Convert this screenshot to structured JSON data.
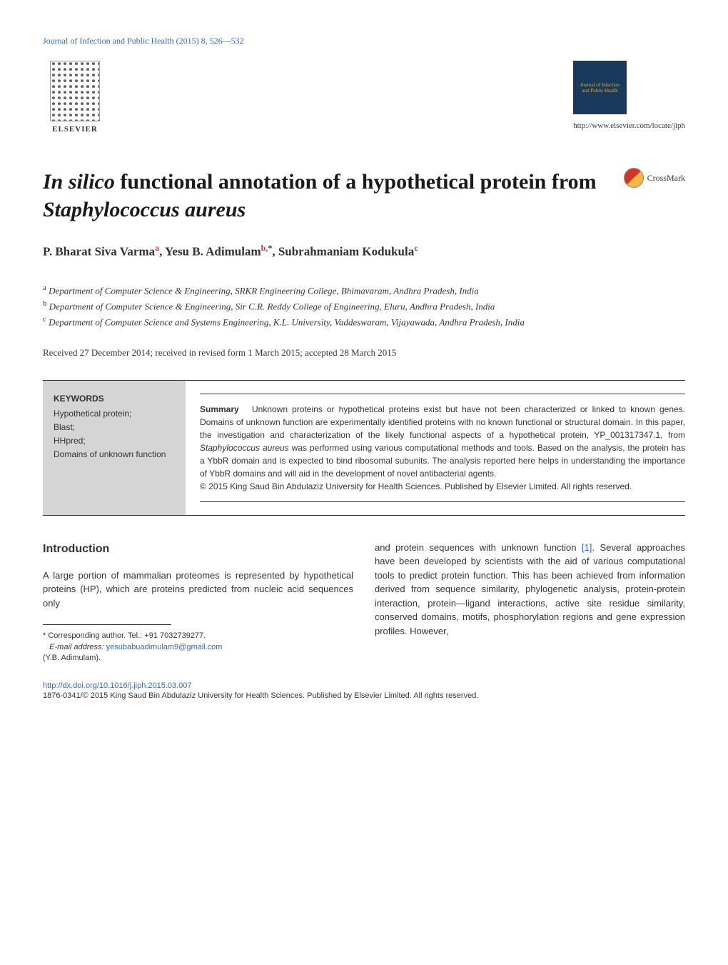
{
  "header": {
    "journal_link": "Journal of Infection and Public Health (2015) 8, 526—532",
    "elsevier_label": "ELSEVIER",
    "journal_badge_text": "Journal of Infection and Public Health",
    "elsevier_url": "http://www.elsevier.com/locate/jiph"
  },
  "title": {
    "italic1": "In silico",
    "text1": " functional annotation of a hypothetical protein from ",
    "italic2": "Staphylococcus aureus"
  },
  "crossmark": "CrossMark",
  "authors": {
    "author1": "P. Bharat Siva Varma",
    "sup1": "a",
    "author2": "Yesu B. Adimulam",
    "sup2": "b,",
    "corr": "*",
    "author3": "Subrahmaniam Kodukula",
    "sup3": "c"
  },
  "affiliations": {
    "a": "Department of Computer Science & Engineering, SRKR Engineering College, Bhimavaram, Andhra Pradesh, India",
    "b": "Department of Computer Science & Engineering, Sir C.R. Reddy College of Engineering, Eluru, Andhra Pradesh, India",
    "c": "Department of Computer Science and Systems Engineering, K.L. University, Vaddeswaram, Vijayawada, Andhra Pradesh, India"
  },
  "dates": "Received 27 December 2014; received in revised form 1 March 2015; accepted 28 March 2015",
  "keywords": {
    "title": "KEYWORDS",
    "items": [
      "Hypothetical protein;",
      "Blast;",
      "HHpred;",
      "Domains of unknown function"
    ]
  },
  "summary": {
    "label": "Summary",
    "text1": "Unknown proteins or hypothetical proteins exist but have not been characterized or linked to known genes. Domains of unknown function are experimentally identified proteins with no known functional or structural domain. In this paper, the investigation and characterization of the likely functional aspects of a hypothetical protein, YP_001317347.1, from ",
    "organism": "Staphylococcus aureus",
    "text2": " was performed using various computational methods and tools. Based on the analysis, the protein has a YbbR domain and is expected to bind ribosomal subunits. The analysis reported here helps in understanding the importance of YbbR domains and will aid in the development of novel antibacterial agents.",
    "copyright": "© 2015 King Saud Bin Abdulaziz University for Health Sciences. Published by Elsevier Limited. All rights reserved."
  },
  "body": {
    "intro_heading": "Introduction",
    "col1_text": "A large portion of mammalian proteomes is represented by hypothetical proteins (HP), which are proteins predicted from nucleic acid sequences only",
    "col2_text1": "and protein sequences with unknown function ",
    "col2_ref": "[1]",
    "col2_text2": ". Several approaches have been developed by scientists with the aid of various computational tools to predict protein function. This has been achieved from information derived from sequence similarity, phylogenetic analysis, protein-protein interaction, protein—ligand interactions, active site residue similarity, conserved domains, motifs, phosphorylation regions and gene expression profiles. However,"
  },
  "footnote": {
    "corr_label": "* Corresponding author. Tel.: +91 7032739277.",
    "email_label": "E-mail address: ",
    "email": "yesubabuadimulam9@gmail.com",
    "author_ref": "(Y.B. Adimulam)."
  },
  "footer": {
    "doi": "http://dx.doi.org/10.1016/j.jiph.2015.03.007",
    "copyright": "1876-0341/© 2015 King Saud Bin Abdulaziz University for Health Sciences. Published by Elsevier Limited. All rights reserved."
  }
}
